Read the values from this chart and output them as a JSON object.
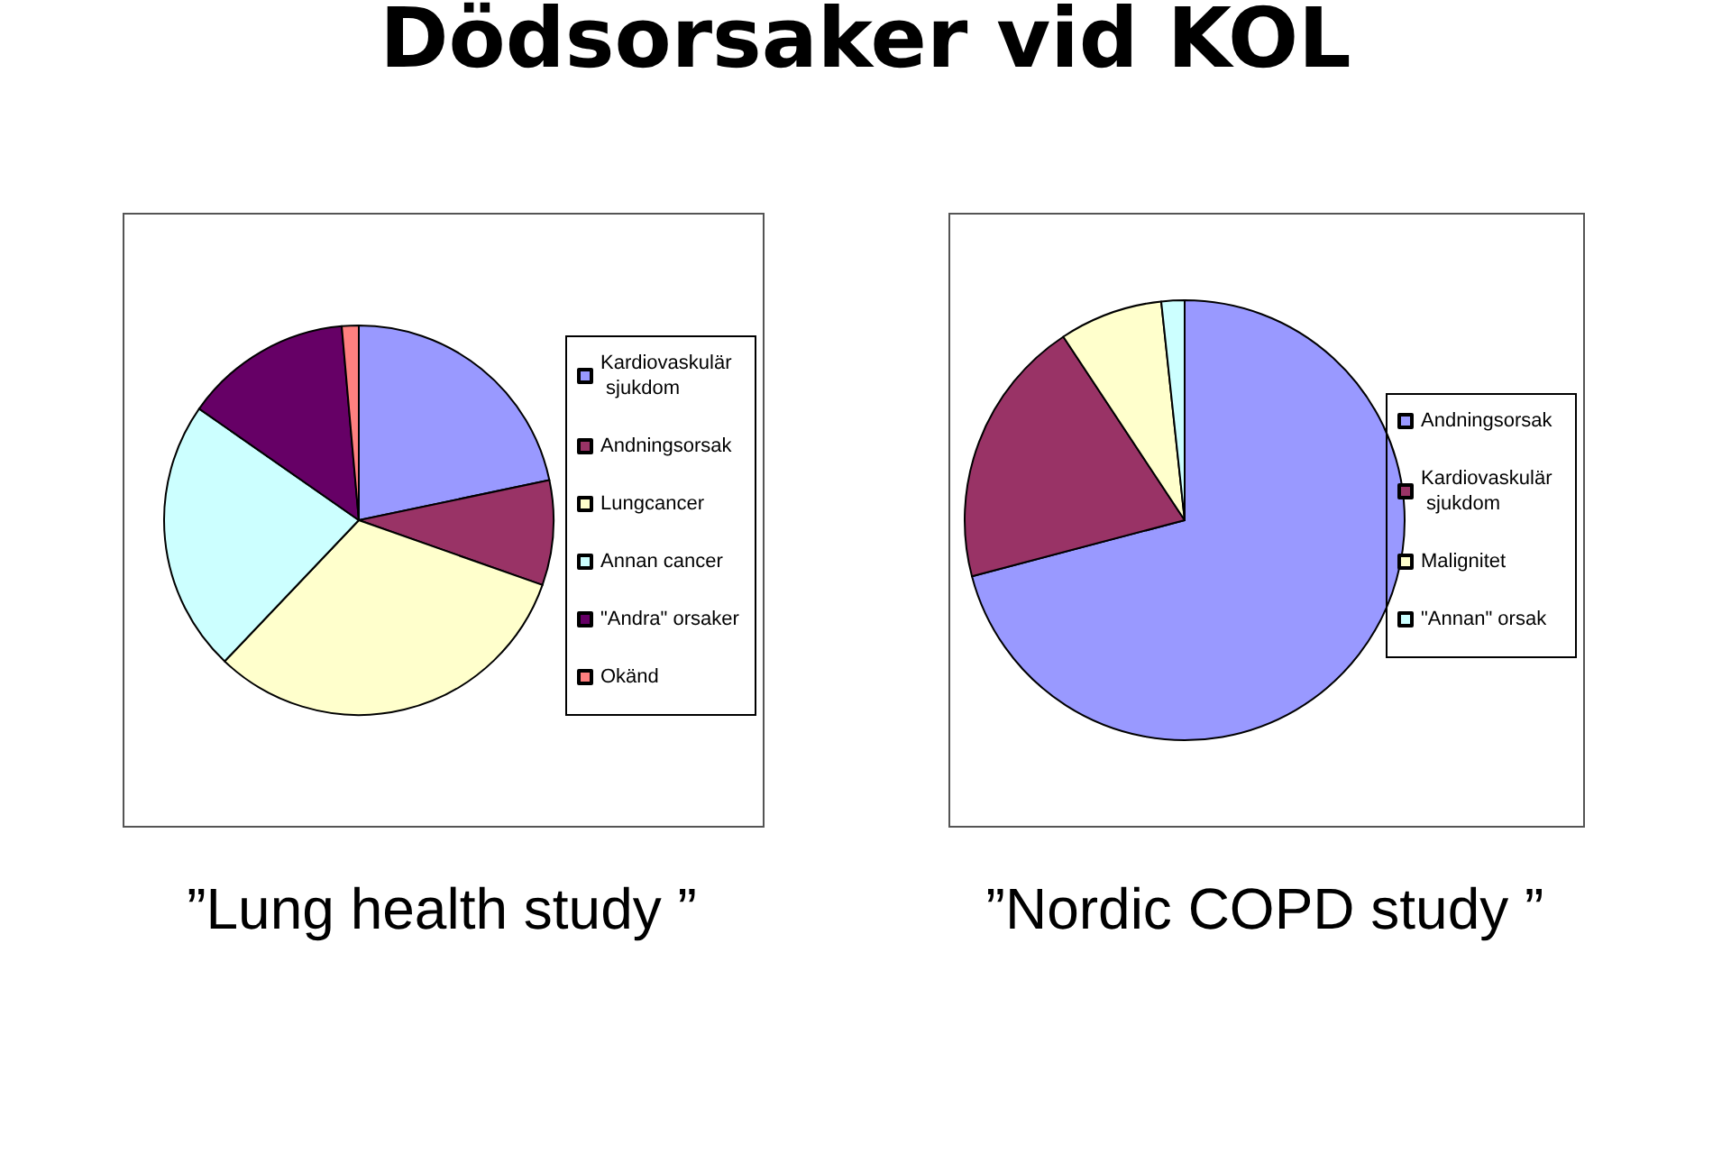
{
  "chart_data": [
    {
      "type": "pie",
      "title": "”Lung health study ”",
      "annotations": [
        "Dödsorsaker vid KOL"
      ],
      "legend": "right",
      "categories": [
        "Kardiovaskulär sjukdom",
        "Andningsorsak",
        "Lungcancer",
        "Annan cancer",
        "\"Andra\" orsaker",
        "Okänd"
      ],
      "values": [
        21.7,
        8.7,
        31.7,
        22.6,
        13.9,
        1.4
      ],
      "colors": [
        "#9999ff",
        "#993366",
        "#ffffcc",
        "#ccffff",
        "#660066",
        "#ff8080"
      ]
    },
    {
      "type": "pie",
      "title": "”Nordic COPD study ”",
      "legend": "right",
      "categories": [
        "Andningsorsak",
        "Kardiovaskulär sjukdom",
        "Malignitet",
        "\"Annan\" orsak"
      ],
      "values": [
        70.9,
        19.8,
        7.6,
        1.7
      ],
      "colors": [
        "#9999ff",
        "#993366",
        "#ffffcc",
        "#ccffff"
      ]
    }
  ]
}
